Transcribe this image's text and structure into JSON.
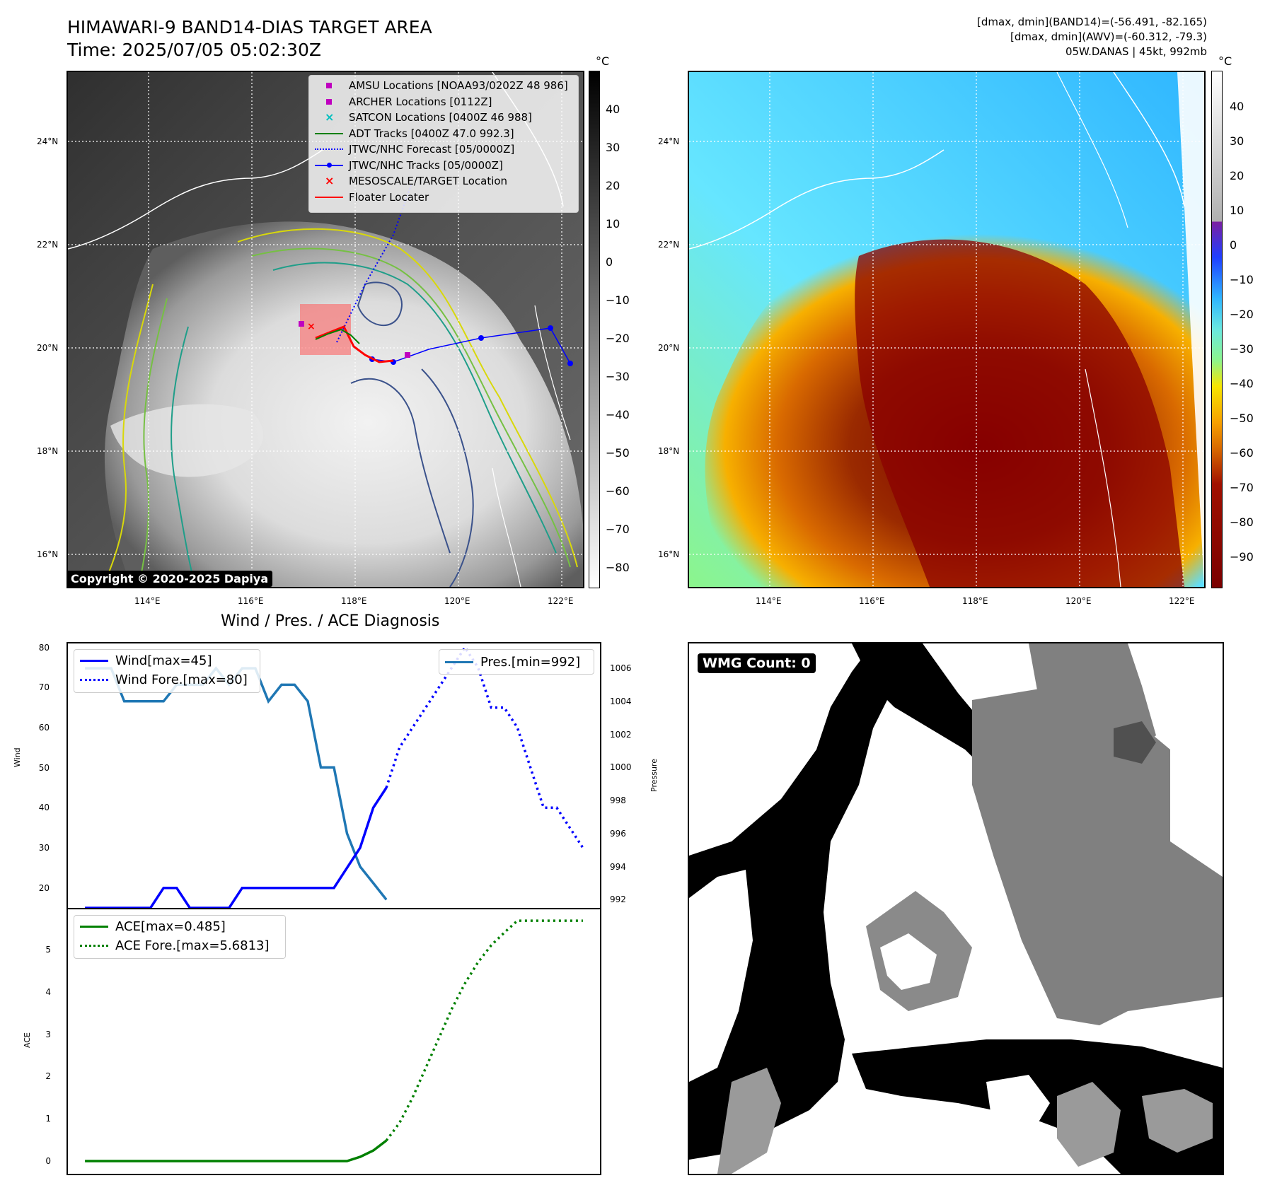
{
  "header": {
    "title_line1": "HIMAWARI-9 BAND14-DIAS TARGET AREA",
    "title_line2": "Time: 2025/07/05 05:02:30Z",
    "stats_line1": "[dmax, dmin](BAND14)=(-56.491, -82.165)",
    "stats_line2": "[dmax, dmin](AWV)=(-60.312, -79.3)",
    "stats_line3": "05W.DANAS | 45kt, 992mb"
  },
  "map_panel": {
    "lat_ticks": [
      "24°N",
      "22°N",
      "20°N",
      "18°N",
      "16°N"
    ],
    "lon_ticks": [
      "114°E",
      "116°E",
      "118°E",
      "120°E",
      "122°E"
    ],
    "copyright": "Copyright © 2020-2025 Dapiya",
    "legend": [
      {
        "label": "AMSU Locations [NOAA93/0202Z 48 986]",
        "symbol": "square",
        "color": "#bf00bf"
      },
      {
        "label": "ARCHER Locations [0112Z]",
        "symbol": "square",
        "color": "#bf00bf"
      },
      {
        "label": "SATCON Locations [0400Z 46 988]",
        "symbol": "x",
        "color": "#00bfbf"
      },
      {
        "label": "ADT Tracks [0400Z 47.0 992.3]",
        "symbol": "line",
        "color": "#008000"
      },
      {
        "label": "JTWC/NHC Forecast [05/0000Z]",
        "symbol": "dotted",
        "color": "#0000ff"
      },
      {
        "label": "JTWC/NHC Tracks [05/0000Z]",
        "symbol": "line-dot",
        "color": "#0000ff"
      },
      {
        "label": "MESOSCALE/TARGET Location",
        "symbol": "x",
        "color": "#ff0000"
      },
      {
        "label": "Floater Locater",
        "symbol": "line",
        "color": "#ff0000"
      }
    ]
  },
  "gray_colorbar": {
    "unit": "°C",
    "ticks": [
      "40",
      "30",
      "20",
      "10",
      "0",
      "−10",
      "−20",
      "−30",
      "−40",
      "−50",
      "−60",
      "−70",
      "−80"
    ]
  },
  "awv_colorbar": {
    "unit": "°C",
    "ticks": [
      "40",
      "30",
      "20",
      "10",
      "0",
      "−10",
      "−20",
      "−30",
      "−40",
      "−50",
      "−60",
      "−70",
      "−80",
      "−90"
    ]
  },
  "diagnosis": {
    "title": "Wind / Pres. / ACE Diagnosis",
    "wind_ylabel": "Wind",
    "pressure_ylabel": "Pressure",
    "ace_ylabel": "ACE",
    "wind_ticks": [
      "80",
      "70",
      "60",
      "50",
      "40",
      "30",
      "20"
    ],
    "pressure_ticks": [
      "1006",
      "1004",
      "1002",
      "1000",
      "998",
      "996",
      "994",
      "992"
    ],
    "ace_ticks": [
      "5",
      "4",
      "3",
      "2",
      "1",
      "0"
    ],
    "legend_wind": "Wind[max=45]",
    "legend_wind_fore": "Wind Fore.[max=80]",
    "legend_pres": "Pres.[min=992]",
    "legend_ace": "ACE[max=0.485]",
    "legend_ace_fore": "ACE Fore.[max=5.6813]"
  },
  "wmg": {
    "label": "WMG Count: 0"
  },
  "chart_data": [
    {
      "type": "line",
      "title": "Wind / Pres. / ACE Diagnosis",
      "ylabel": "Wind",
      "ylim": [
        15,
        81
      ],
      "x": [
        0,
        1,
        2,
        3,
        4,
        5,
        6,
        7,
        8,
        9,
        10,
        11,
        12,
        13,
        14,
        15,
        16,
        17,
        18,
        19,
        20,
        21,
        22,
        23,
        24,
        25,
        26,
        27,
        28,
        29,
        30,
        31,
        32,
        33,
        34,
        35,
        36,
        37,
        38
      ],
      "series": [
        {
          "name": "Wind[max=45]",
          "color": "#0000ff",
          "style": "solid",
          "x": [
            0,
            1,
            2,
            3,
            4,
            5,
            6,
            7,
            8,
            9,
            10,
            11,
            12,
            13,
            14,
            15,
            16,
            17,
            18,
            19,
            20,
            21,
            22,
            23
          ],
          "values": [
            15,
            15,
            15,
            15,
            15,
            15,
            20,
            20,
            15,
            15,
            15,
            15,
            20,
            20,
            20,
            20,
            20,
            20,
            20,
            20,
            25,
            30,
            40,
            45
          ]
        },
        {
          "name": "Wind Fore.[max=80]",
          "color": "#0000ff",
          "style": "dotted",
          "x": [
            23,
            24,
            25,
            26,
            27,
            28,
            29,
            30,
            31,
            32,
            33,
            34,
            35,
            36,
            37,
            38
          ],
          "values": [
            45,
            55,
            60,
            65,
            70,
            75,
            80,
            75,
            65,
            65,
            60,
            50,
            40,
            40,
            35,
            30
          ]
        }
      ]
    },
    {
      "type": "line",
      "ylabel": "Pressure",
      "ylim": [
        991.5,
        1007.5
      ],
      "series": [
        {
          "name": "Pres.[min=992]",
          "color": "#1f77b4",
          "style": "solid",
          "x": [
            0,
            1,
            2,
            3,
            4,
            5,
            6,
            7,
            8,
            9,
            10,
            11,
            12,
            13,
            14,
            15,
            16,
            17,
            18,
            19,
            20,
            21,
            22,
            23
          ],
          "values": [
            1006,
            1006,
            1006,
            1004,
            1004,
            1004,
            1004,
            1005,
            1005,
            1005,
            1006,
            1005,
            1006,
            1006,
            1004,
            1005,
            1005,
            1004,
            1000,
            1000,
            996,
            994,
            993,
            992
          ]
        }
      ]
    },
    {
      "type": "line",
      "ylabel": "ACE",
      "ylim": [
        -0.3,
        5.95
      ],
      "series": [
        {
          "name": "ACE[max=0.485]",
          "color": "#008000",
          "style": "solid",
          "x": [
            0,
            19,
            20,
            21,
            22,
            23
          ],
          "values": [
            0,
            0,
            0,
            0.1,
            0.25,
            0.485
          ]
        },
        {
          "name": "ACE Fore.[max=5.6813]",
          "color": "#008000",
          "style": "dotted",
          "x": [
            23,
            24,
            25,
            26,
            27,
            28,
            29,
            30,
            31,
            32,
            33,
            34,
            35,
            36,
            37,
            38
          ],
          "values": [
            0.485,
            0.9,
            1.5,
            2.2,
            2.9,
            3.6,
            4.2,
            4.7,
            5.1,
            5.4,
            5.6813,
            5.6813,
            5.6813,
            5.6813,
            5.6813,
            5.6813
          ]
        }
      ]
    }
  ]
}
